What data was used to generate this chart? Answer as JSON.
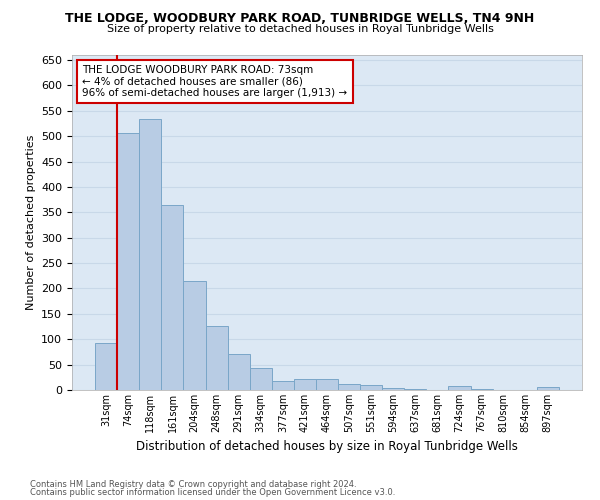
{
  "title1": "THE LODGE, WOODBURY PARK ROAD, TUNBRIDGE WELLS, TN4 9NH",
  "title2": "Size of property relative to detached houses in Royal Tunbridge Wells",
  "xlabel": "Distribution of detached houses by size in Royal Tunbridge Wells",
  "ylabel": "Number of detached properties",
  "footer1": "Contains HM Land Registry data © Crown copyright and database right 2024.",
  "footer2": "Contains public sector information licensed under the Open Government Licence v3.0.",
  "categories": [
    "31sqm",
    "74sqm",
    "118sqm",
    "161sqm",
    "204sqm",
    "248sqm",
    "291sqm",
    "334sqm",
    "377sqm",
    "421sqm",
    "464sqm",
    "507sqm",
    "551sqm",
    "594sqm",
    "637sqm",
    "681sqm",
    "724sqm",
    "767sqm",
    "810sqm",
    "854sqm",
    "897sqm"
  ],
  "values": [
    93,
    507,
    533,
    365,
    215,
    126,
    70,
    43,
    18,
    21,
    21,
    12,
    10,
    3,
    2,
    0,
    7,
    1,
    0,
    0,
    5
  ],
  "bar_color": "#b8cce4",
  "bar_edge_color": "#7aa6c8",
  "grid_color": "#c8d8e8",
  "background_color": "#dce8f4",
  "annotation_line_color": "#cc0000",
  "annotation_box_text": "THE LODGE WOODBURY PARK ROAD: 73sqm\n← 4% of detached houses are smaller (86)\n96% of semi-detached houses are larger (1,913) →",
  "ylim": [
    0,
    660
  ],
  "yticks": [
    0,
    50,
    100,
    150,
    200,
    250,
    300,
    350,
    400,
    450,
    500,
    550,
    600,
    650
  ]
}
